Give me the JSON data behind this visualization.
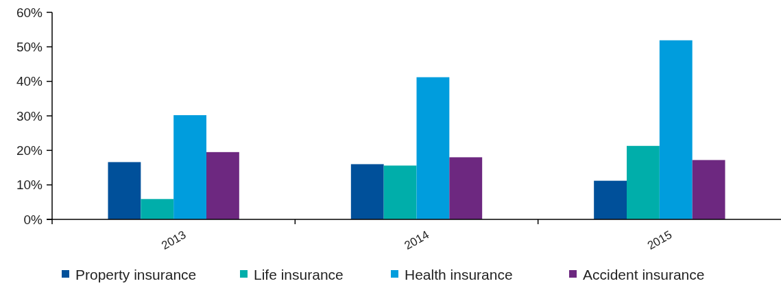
{
  "chart_data": {
    "type": "bar",
    "categories": [
      "2013",
      "2014",
      "2015"
    ],
    "series": [
      {
        "name": "Property insurance",
        "color": "#00509a",
        "values": [
          16.6,
          16.0,
          11.2
        ]
      },
      {
        "name": "Life insurance",
        "color": "#00aeaa",
        "values": [
          5.9,
          15.6,
          21.3
        ]
      },
      {
        "name": "Health insurance",
        "color": "#009ddd",
        "values": [
          30.2,
          41.2,
          51.9
        ]
      },
      {
        "name": "Accident insurance",
        "color": "#6d2880",
        "values": [
          19.5,
          18.0,
          17.2
        ]
      }
    ],
    "ylim": [
      0,
      60
    ],
    "yticks": [
      {
        "value": 0,
        "label": "0%"
      },
      {
        "value": 10,
        "label": "10%"
      },
      {
        "value": 20,
        "label": "20%"
      },
      {
        "value": 30,
        "label": "30%"
      },
      {
        "value": 40,
        "label": "40%"
      },
      {
        "value": 50,
        "label": "50%"
      },
      {
        "value": 60,
        "label": "60%"
      }
    ],
    "grid": false,
    "legend": "bottom"
  }
}
